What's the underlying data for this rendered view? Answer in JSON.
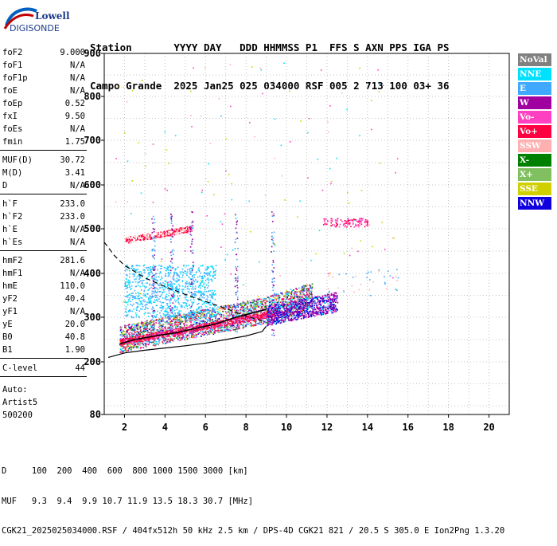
{
  "logo": {
    "brand": "Lowell",
    "product": "DIGISONDE"
  },
  "header": {
    "labels": "Station       YYYY DAY   DDD HHMMSS P1  FFS S AXN PPS IGA PS",
    "values": "Campo Grande  2025 Jan25 025 034000 RSF 005 2 713 100 03+ 36"
  },
  "params_group1": [
    {
      "label": "foF2",
      "value": "9.000"
    },
    {
      "label": "foF1",
      "value": "N/A"
    },
    {
      "label": "foF1p",
      "value": "N/A"
    },
    {
      "label": "foE",
      "value": "N/A"
    },
    {
      "label": "foEp",
      "value": "0.52"
    },
    {
      "label": "fxI",
      "value": "9.50"
    },
    {
      "label": "foEs",
      "value": "N/A"
    },
    {
      "label": "fmin",
      "value": "1.75"
    }
  ],
  "params_group2": [
    {
      "label": "MUF(D)",
      "value": "30.72"
    },
    {
      "label": "M(D)",
      "value": "3.41"
    },
    {
      "label": "D",
      "value": "N/A"
    }
  ],
  "params_group3": [
    {
      "label": "h`F",
      "value": "233.0"
    },
    {
      "label": "h`F2",
      "value": "233.0"
    },
    {
      "label": "h`E",
      "value": "N/A"
    },
    {
      "label": "h`Es",
      "value": "N/A"
    }
  ],
  "params_group4": [
    {
      "label": "hmF2",
      "value": "281.6"
    },
    {
      "label": "hmF1",
      "value": "N/A"
    },
    {
      "label": "hmE",
      "value": "110.0"
    },
    {
      "label": "yF2",
      "value": "40.4"
    },
    {
      "label": "yF1",
      "value": "N/A"
    },
    {
      "label": "yE",
      "value": "20.0"
    },
    {
      "label": "B0",
      "value": "40.8"
    },
    {
      "label": "B1",
      "value": "1.90"
    }
  ],
  "clevel": {
    "label": "C-level",
    "value": "44"
  },
  "auto": {
    "line1": "Auto:",
    "line2": "Artist5",
    "line3": "500200"
  },
  "legend": [
    {
      "label": "NoVal",
      "color": "#808080"
    },
    {
      "label": "NNE",
      "color": "#00e0ff"
    },
    {
      "label": "E",
      "color": "#40a8ff"
    },
    {
      "label": "W",
      "color": "#a000a0"
    },
    {
      "label": "Vo-",
      "color": "#ff40c0"
    },
    {
      "label": "Vo+",
      "color": "#ff0040"
    },
    {
      "label": "SSW",
      "color": "#ffb0b0"
    },
    {
      "label": "X-",
      "color": "#008000"
    },
    {
      "label": "X+",
      "color": "#80c060"
    },
    {
      "label": "SSE",
      "color": "#d0d000"
    },
    {
      "label": "NNW",
      "color": "#1000e0"
    }
  ],
  "chart_data": {
    "type": "scatter",
    "title": "",
    "xlabel": "",
    "ylabel": "",
    "xlim": [
      1,
      21
    ],
    "ylim": [
      80,
      900
    ],
    "x_ticks": [
      2,
      4,
      6,
      8,
      10,
      12,
      14,
      16,
      18,
      20
    ],
    "y_ticks": [
      80,
      200,
      300,
      400,
      500,
      600,
      700,
      800,
      900
    ],
    "grid": true,
    "trace_profile": [
      [
        1.75,
        240
      ],
      [
        2.5,
        250
      ],
      [
        3.5,
        258
      ],
      [
        4.5,
        265
      ],
      [
        5.5,
        275
      ],
      [
        6.5,
        285
      ],
      [
        7.5,
        300
      ],
      [
        8.5,
        312
      ],
      [
        9.0,
        318
      ]
    ],
    "true_height_profile": [
      [
        1.2,
        210
      ],
      [
        2.0,
        220
      ],
      [
        3.0,
        226
      ],
      [
        4.0,
        231
      ],
      [
        5.0,
        236
      ],
      [
        6.0,
        242
      ],
      [
        7.0,
        250
      ],
      [
        8.0,
        258
      ],
      [
        8.8,
        268
      ],
      [
        9.0,
        280
      ]
    ],
    "dashed_model": [
      [
        1,
        470
      ],
      [
        1.5,
        440
      ],
      [
        2.0,
        418
      ],
      [
        3.0,
        390
      ],
      [
        4.0,
        370
      ],
      [
        5.0,
        352
      ],
      [
        6.0,
        336
      ],
      [
        7.0,
        320
      ],
      [
        8.0,
        303
      ],
      [
        8.8,
        292
      ]
    ]
  },
  "footer": {
    "line1": "D     100  200  400  600  800 1000 1500 3000 [km]",
    "line2": "MUF   9.3  9.4  9.9 10.7 11.9 13.5 18.3 30.7 [MHz]",
    "line3": "CGK21_2025025034000.RSF / 404fx512h 50 kHz 2.5 km / DPS-4D CGK21 821 / 20.5 S 305.0 E Ion2Png 1.3.20"
  }
}
